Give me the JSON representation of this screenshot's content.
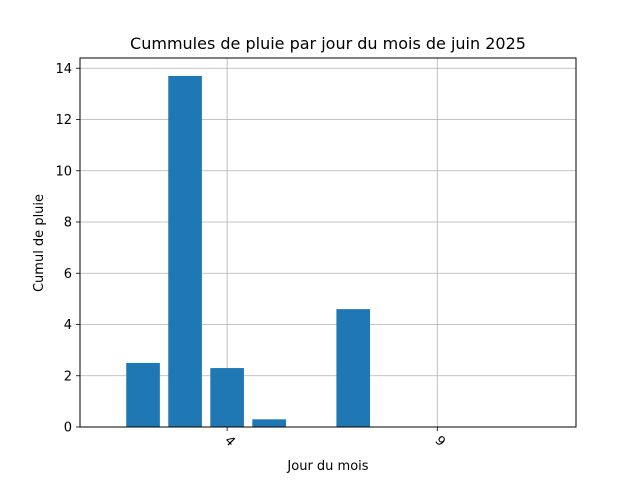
{
  "chart_data": {
    "type": "bar",
    "title": "Cummules de pluie par jour du mois de juin 2025",
    "xlabel": "Jour du mois",
    "ylabel": "Cumul de pluie",
    "x": [
      2,
      3,
      4,
      5,
      6,
      7,
      8,
      9,
      10,
      11
    ],
    "values": [
      2.5,
      13.7,
      2.3,
      0.3,
      0,
      4.6,
      0,
      0,
      0,
      0
    ],
    "xlim": [
      0.5,
      12.3
    ],
    "ylim": [
      0,
      14.4
    ],
    "x_ticks": [
      4,
      9
    ],
    "y_ticks": [
      0,
      2,
      4,
      6,
      8,
      10,
      12,
      14
    ],
    "x_tick_rotation": 45,
    "grid": true,
    "colors": {
      "bar": "#1f77b4",
      "grid": "#b0b0b0",
      "axis": "#000000"
    }
  }
}
